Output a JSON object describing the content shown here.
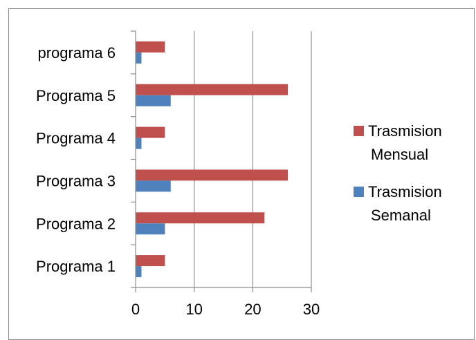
{
  "chart_data": {
    "type": "bar",
    "orientation": "horizontal",
    "categories": [
      "Programa 1",
      "Programa 2",
      "Programa 3",
      "Programa 4",
      "Programa 5",
      "programa 6"
    ],
    "series": [
      {
        "name_lines": [
          "Trasmision",
          "Mensual"
        ],
        "name": "Trasmision Mensual",
        "color": "#c0504d",
        "values": [
          5,
          22,
          26,
          5,
          26,
          5
        ]
      },
      {
        "name_lines": [
          "Trasmision",
          "Semanal"
        ],
        "name": "Trasmision Semanal",
        "color": "#4f81bd",
        "values": [
          1,
          5,
          6,
          1,
          6,
          1
        ]
      }
    ],
    "xlim": [
      0,
      30
    ],
    "xticks": [
      0,
      10,
      20,
      30
    ],
    "grid": true,
    "legend_position": "right"
  }
}
